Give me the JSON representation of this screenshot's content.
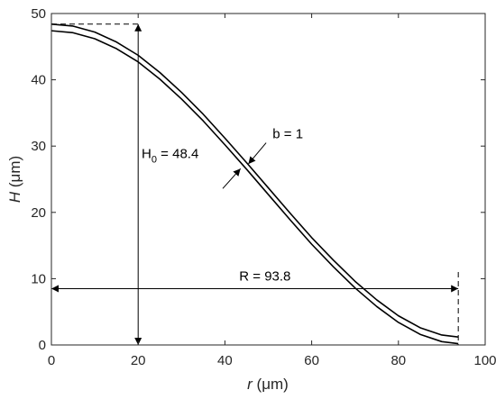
{
  "chart_data": {
    "type": "line",
    "xlabel_symbol": "r",
    "xlabel_unit": " (μm)",
    "ylabel_symbol": "H",
    "ylabel_unit": " (μm)",
    "xlim": [
      0,
      100
    ],
    "ylim": [
      0,
      50
    ],
    "x_ticks": [
      "0",
      "20",
      "40",
      "60",
      "80",
      "100"
    ],
    "y_ticks": [
      "0",
      "10",
      "20",
      "30",
      "40",
      "50"
    ],
    "grid": false,
    "series": [
      {
        "x": [
          0,
          5,
          10,
          15,
          20,
          25,
          30,
          35,
          40,
          45,
          50,
          55,
          60,
          65,
          70,
          75,
          80,
          85,
          90,
          93.8
        ],
        "y": [
          48.4,
          48.1,
          47.2,
          45.7,
          43.7,
          41.1,
          38.1,
          34.8,
          31.2,
          27.5,
          23.7,
          19.9,
          16.2,
          12.8,
          9.6,
          6.8,
          4.4,
          2.6,
          1.5,
          1.2
        ]
      },
      {
        "x": [
          0,
          5,
          10,
          15,
          20,
          25,
          30,
          35,
          40,
          45,
          50,
          55,
          60,
          65,
          70,
          75,
          80,
          85,
          90,
          93.8
        ],
        "y": [
          47.4,
          47.1,
          46.2,
          44.7,
          42.7,
          40.1,
          37.1,
          33.8,
          30.2,
          26.5,
          22.7,
          18.9,
          15.2,
          11.8,
          8.6,
          5.8,
          3.4,
          1.6,
          0.5,
          0.2
        ]
      }
    ],
    "annotations": {
      "height_main": "H",
      "height_sub": "0",
      "height_value": " = 48.4",
      "radius": "R = 93.8",
      "thickness": "b = 1",
      "H0_value": 48.4,
      "R_value": 93.8,
      "b_value": 1
    }
  }
}
